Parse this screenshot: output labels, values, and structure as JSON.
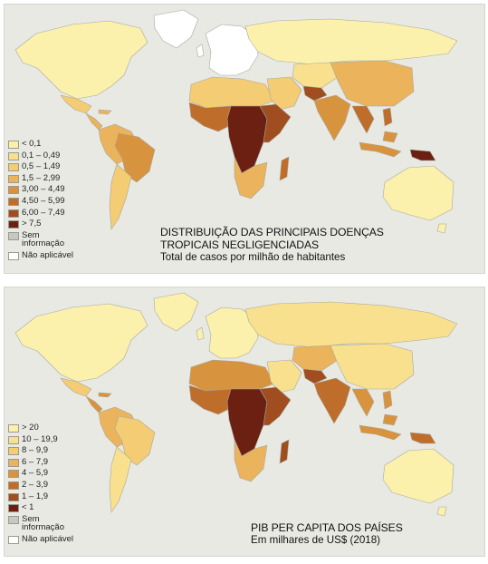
{
  "maps": [
    {
      "title": "DISTRIBUIÇÃO DAS PRINCIPAIS DOENÇAS\nTROPICAIS NEGLIGENCIADAS",
      "subtitle": "Total de casos por milhão de habitantes",
      "legend": [
        {
          "label": "< 0,1",
          "color": "#fbf1ad"
        },
        {
          "label": "0,1 – 0,49",
          "color": "#f8e08e"
        },
        {
          "label": "0,5 – 1,49",
          "color": "#f3cc74"
        },
        {
          "label": "1,5 – 2,99",
          "color": "#eab35c"
        },
        {
          "label": "3,00 – 4,49",
          "color": "#d8933f"
        },
        {
          "label": "4,50 – 5,99",
          "color": "#bf6d2a"
        },
        {
          "label": "6,00 – 7,49",
          "color": "#a04d1f"
        },
        {
          "label": "> 7,5",
          "color": "#6c2012"
        },
        {
          "label": "Sem\ninformação",
          "color": "#c8c8c3"
        },
        {
          "label": "Não aplicável",
          "color": "#ffffff"
        }
      ],
      "regions": {
        "north-america": "< 0,1",
        "greenland": "Não aplicável",
        "mexico": "0,5 – 1,49",
        "central-america": "1,5 – 2,99",
        "south-america": "1,5 – 2,99",
        "brazil": "3,00 – 4,49",
        "southern-cone": "0,5 – 1,49",
        "europe": "Não aplicável",
        "russia": "< 0,1",
        "north-africa": "0,5 – 1,49",
        "middle-east": "0,5 – 1,49",
        "west-africa": "4,50 – 5,99",
        "central-africa": "> 7,5",
        "east-africa": "6,00 – 7,49",
        "southern-africa": "1,5 – 2,99",
        "madagascar": "4,50 – 5,99",
        "central-asia": "0,1 – 0,49",
        "afghanistan": "6,00 – 7,49",
        "india": "3,00 – 4,49",
        "china": "1,5 – 2,99",
        "southeast-asia": "4,50 – 5,99",
        "indonesia": "3,00 – 4,49",
        "papua-new-guinea": "> 7,5",
        "australia": "< 0,1"
      }
    },
    {
      "title": "PIB PER CAPITA DOS PAÍSES",
      "subtitle": "Em milhares de US$ (2018)",
      "legend": [
        {
          "label": "> 20",
          "color": "#fbf1ad"
        },
        {
          "label": "10 – 19,9",
          "color": "#f8e08e"
        },
        {
          "label": "8 – 9,9",
          "color": "#f3cc74"
        },
        {
          "label": "6 – 7,9",
          "color": "#eab35c"
        },
        {
          "label": "4 – 5,9",
          "color": "#d8933f"
        },
        {
          "label": "2 – 3,9",
          "color": "#bf6d2a"
        },
        {
          "label": "1 – 1,9",
          "color": "#a04d1f"
        },
        {
          "label": "< 1",
          "color": "#6c2012"
        },
        {
          "label": "Sem\ninformação",
          "color": "#c8c8c3"
        },
        {
          "label": "Não aplicável",
          "color": "#ffffff"
        }
      ],
      "regions": {
        "north-america": "> 20",
        "greenland": "> 20",
        "mexico": "8 – 9,9",
        "central-america": "4 – 5,9",
        "south-america": "6 – 7,9",
        "brazil": "8 – 9,9",
        "southern-cone": "10 – 19,9",
        "europe": "> 20",
        "russia": "10 – 19,9",
        "north-africa": "4 – 5,9",
        "middle-east": "10 – 19,9",
        "west-africa": "2 – 3,9",
        "central-africa": "< 1",
        "east-africa": "1 – 1,9",
        "southern-africa": "6 – 7,9",
        "madagascar": "1 – 1,9",
        "central-asia": "6 – 7,9",
        "afghanistan": "1 – 1,9",
        "india": "2 – 3,9",
        "china": "10 – 19,9",
        "southeast-asia": "4 – 5,9",
        "indonesia": "4 – 5,9",
        "papua-new-guinea": "2 – 3,9",
        "australia": "> 20"
      }
    }
  ]
}
